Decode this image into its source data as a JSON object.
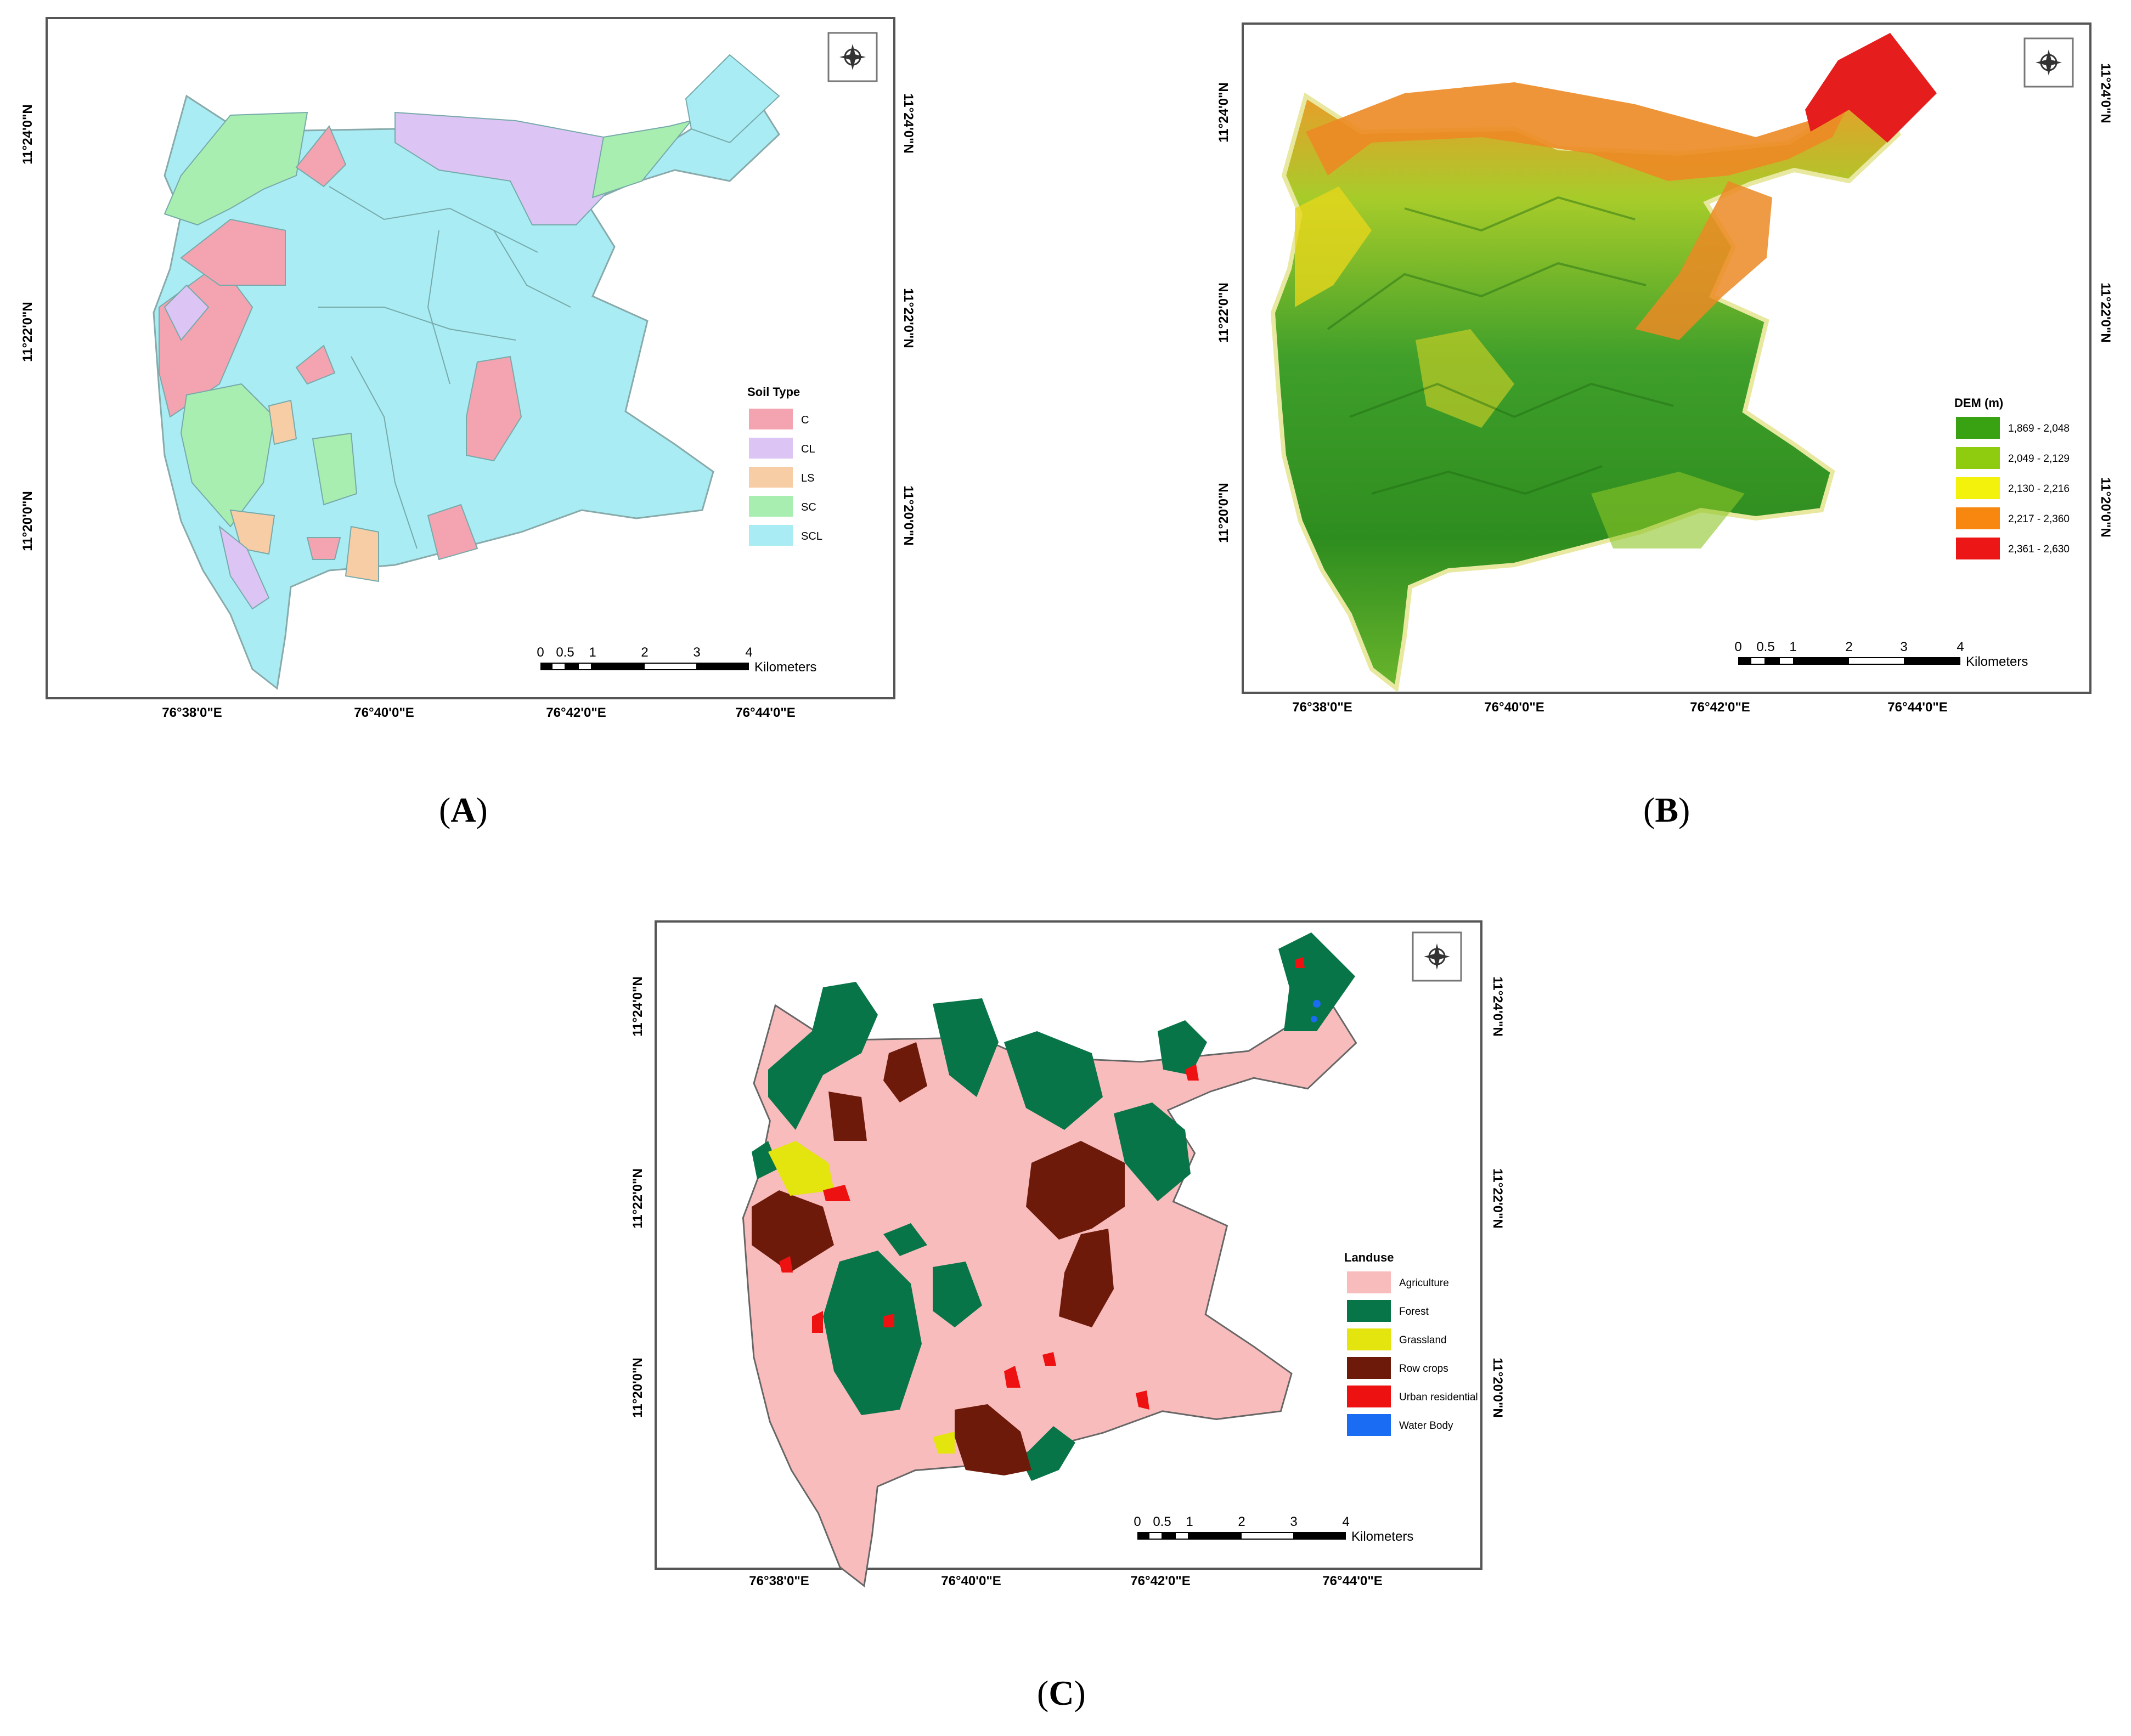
{
  "panels": {
    "A": {
      "label": "A",
      "lat_ticks": [
        "11°24'0\"N",
        "11°22'0\"N",
        "11°20'0\"N"
      ],
      "lon_ticks": [
        "76°38'0\"E",
        "76°40'0\"E",
        "76°42'0\"E",
        "76°44'0\"E"
      ],
      "legend": {
        "title": "Soil Type",
        "items": [
          {
            "label": "C",
            "color": "#f4a3b1"
          },
          {
            "label": "CL",
            "color": "#dcc4f4"
          },
          {
            "label": "LS",
            "color": "#f7cda6"
          },
          {
            "label": "SC",
            "color": "#a8eeb0"
          },
          {
            "label": "SCL",
            "color": "#a9ecf4"
          }
        ]
      },
      "scale": {
        "ticks": [
          "0",
          "0.5",
          "1",
          "2",
          "3",
          "4"
        ],
        "unit": "Kilometers"
      },
      "north_icon": "compass-rose-icon"
    },
    "B": {
      "label": "B",
      "lat_ticks": [
        "11°24'0\"N",
        "11°22'0\"N",
        "11°20'0\"N"
      ],
      "lon_ticks": [
        "76°38'0\"E",
        "76°40'0\"E",
        "76°42'0\"E",
        "76°44'0\"E"
      ],
      "legend": {
        "title": "DEM (m)",
        "items": [
          {
            "label": "1,869 - 2,048",
            "color": "#38a213"
          },
          {
            "label": "2,049 - 2,129",
            "color": "#8fcc10"
          },
          {
            "label": "2,130 - 2,216",
            "color": "#f2f20c"
          },
          {
            "label": "2,217 - 2,360",
            "color": "#f7870f"
          },
          {
            "label": "2,361 - 2,630",
            "color": "#ec1616"
          }
        ]
      },
      "scale": {
        "ticks": [
          "0",
          "0.5",
          "1",
          "2",
          "3",
          "4"
        ],
        "unit": "Kilometers"
      },
      "north_icon": "compass-rose-icon"
    },
    "C": {
      "label": "C",
      "lat_ticks": [
        "11°24'0\"N",
        "11°22'0\"N",
        "11°20'0\"N"
      ],
      "lon_ticks": [
        "76°38'0\"E",
        "76°40'0\"E",
        "76°42'0\"E",
        "76°44'0\"E"
      ],
      "legend": {
        "title": "Landuse",
        "items": [
          {
            "label": "Agriculture",
            "color": "#f8bcbc"
          },
          {
            "label": "Forest",
            "color": "#087548"
          },
          {
            "label": "Grassland",
            "color": "#e4e40e"
          },
          {
            "label": "Row crops",
            "color": "#6e1a0a"
          },
          {
            "label": "Urban residential",
            "color": "#ee1111"
          },
          {
            "label": "Water Body",
            "color": "#1a6cf2"
          }
        ]
      },
      "scale": {
        "ticks": [
          "0",
          "0.5",
          "1",
          "2",
          "3",
          "4"
        ],
        "unit": "Kilometers"
      },
      "north_icon": "compass-rose-icon"
    }
  }
}
